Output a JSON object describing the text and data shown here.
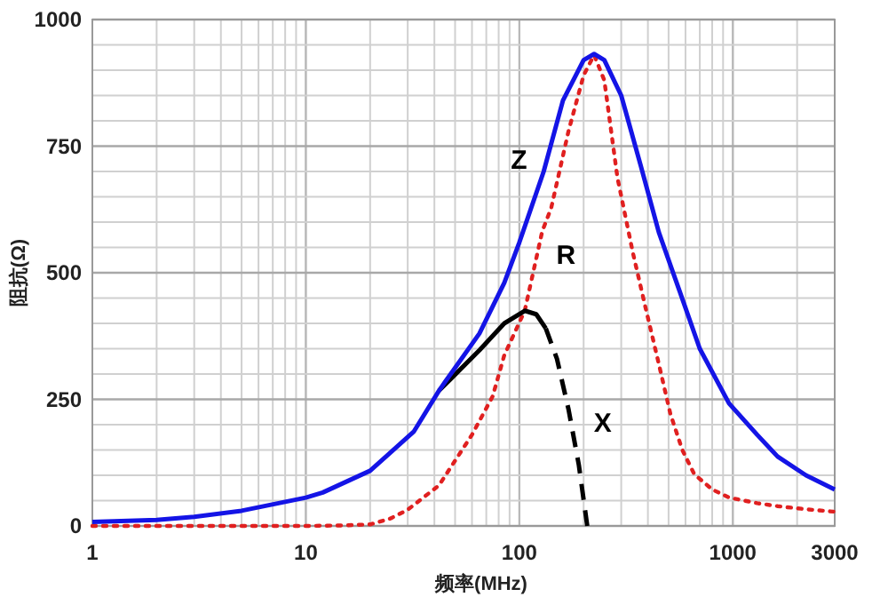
{
  "chart_data": {
    "type": "line",
    "xlabel": "频率(MHz)",
    "ylabel": "阻抗(Ω)",
    "log": "x",
    "grid": true,
    "marker": "none",
    "xlim": [
      1,
      3000
    ],
    "ylim": [
      0,
      1000
    ],
    "xticks": [
      1,
      10,
      100,
      1000,
      3000
    ],
    "yticks": [
      0,
      250,
      500,
      750,
      1000
    ],
    "series": [
      {
        "name": "Z",
        "color": "#1414e6",
        "line_style": "solid",
        "x": [
          1,
          2,
          3,
          5,
          10,
          12,
          20,
          32,
          42,
          45,
          65,
          85,
          100,
          130,
          160,
          200,
          224,
          250,
          300,
          370,
          450,
          575,
          700,
          960,
          1300,
          1620,
          2200,
          3000
        ],
        "values": [
          8,
          12,
          18,
          30,
          56,
          66,
          109,
          186,
          267,
          285,
          380,
          480,
          560,
          700,
          840,
          920,
          932,
          920,
          850,
          712,
          580,
          453,
          350,
          242,
          180,
          137,
          100,
          72
        ]
      },
      {
        "name": "R",
        "color": "#e02020",
        "line_style": "dotted",
        "x": [
          1,
          5,
          10,
          15,
          20,
          25,
          30,
          42,
          60,
          75,
          85,
          106,
          128,
          141,
          170,
          200,
          224,
          250,
          288,
          340,
          390,
          450,
          510,
          580,
          660,
          800,
          960,
          1300,
          1620,
          2200,
          3000
        ],
        "values": [
          0,
          0,
          0,
          1,
          3,
          15,
          32,
          80,
          180,
          256,
          337,
          425,
          582,
          628,
          780,
          890,
          930,
          880,
          688,
          540,
          431,
          320,
          221,
          150,
          102,
          72,
          56,
          45,
          39,
          33,
          28
        ]
      },
      {
        "color": "#000000",
        "line_style": "solid",
        "x": [
          42,
          65,
          85,
          106,
          120,
          133
        ],
        "values": [
          267,
          347,
          400,
          425,
          418,
          390
        ]
      },
      {
        "name": "X",
        "color": "#000000",
        "line_style": "dashed",
        "x": [
          133,
          150,
          170,
          190,
          208
        ],
        "values": [
          390,
          330,
          230,
          120,
          0
        ]
      }
    ]
  }
}
